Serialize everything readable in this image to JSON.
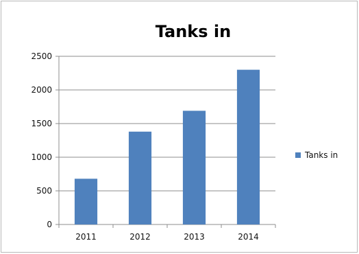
{
  "chart_data": {
    "type": "bar",
    "title": "Tanks in",
    "categories": [
      "2011",
      "2012",
      "2013",
      "2014"
    ],
    "series": [
      {
        "name": "Tanks in",
        "values": [
          680,
          1380,
          1690,
          2300
        ],
        "color": "#4f81bd"
      }
    ],
    "ylim": [
      0,
      2500
    ],
    "yticks": [
      0,
      500,
      1000,
      1500,
      2000,
      2500
    ],
    "grid": true,
    "legend": "right",
    "xlabel": "",
    "ylabel": ""
  }
}
